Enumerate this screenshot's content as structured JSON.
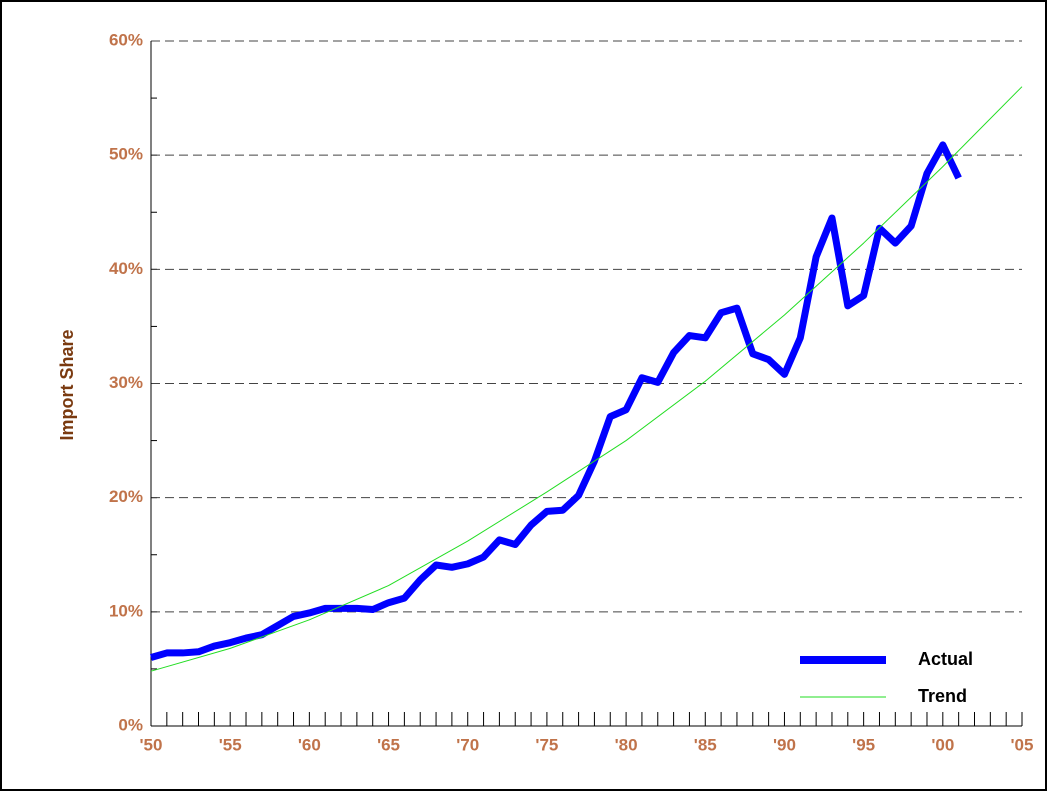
{
  "chart_data": {
    "type": "line",
    "ylabel": "Import Share",
    "series": [
      {
        "name": "Actual",
        "color": "#0000ff",
        "x": [
          1950,
          1951,
          1952,
          1953,
          1954,
          1955,
          1956,
          1957,
          1958,
          1959,
          1960,
          1961,
          1962,
          1963,
          1964,
          1965,
          1966,
          1967,
          1968,
          1969,
          1970,
          1971,
          1972,
          1973,
          1974,
          1975,
          1976,
          1977,
          1978,
          1979,
          1980,
          1981,
          1982,
          1983,
          1984,
          1985,
          1986,
          1987,
          1988,
          1989,
          1990,
          1991,
          1992,
          1993,
          1994,
          1995,
          1996,
          1997,
          1998,
          1999,
          2000,
          2001
        ],
        "values": [
          6.0,
          6.4,
          6.4,
          6.5,
          7.0,
          7.3,
          7.7,
          8.0,
          8.8,
          9.6,
          9.9,
          10.3,
          10.3,
          10.3,
          10.2,
          10.8,
          11.2,
          12.8,
          14.1,
          13.9,
          14.2,
          14.8,
          16.3,
          15.9,
          17.6,
          18.8,
          18.9,
          20.2,
          23.2,
          27.1,
          27.7,
          30.5,
          30.1,
          32.7,
          34.2,
          34.0,
          36.2,
          36.6,
          32.6,
          32.1,
          30.8,
          34.0,
          41.1,
          44.5,
          36.8,
          37.7,
          43.6,
          42.3,
          43.8,
          48.4,
          50.9,
          48.0
        ]
      },
      {
        "name": "Trend",
        "color": "#22dd22",
        "x": [
          1950,
          1955,
          1960,
          1965,
          1970,
          1975,
          1980,
          1985,
          1990,
          1995,
          2000,
          2005
        ],
        "values": [
          4.8,
          6.8,
          9.3,
          12.3,
          16.2,
          20.5,
          25.0,
          30.2,
          36.0,
          42.3,
          49.0,
          56.0
        ]
      }
    ],
    "xlim": [
      1950,
      2005
    ],
    "xticks": [
      {
        "value": 1950,
        "label": "'50"
      },
      {
        "value": 1955,
        "label": "'55"
      },
      {
        "value": 1960,
        "label": "'60"
      },
      {
        "value": 1965,
        "label": "'65"
      },
      {
        "value": 1970,
        "label": "'70"
      },
      {
        "value": 1975,
        "label": "'75"
      },
      {
        "value": 1980,
        "label": "'80"
      },
      {
        "value": 1985,
        "label": "'85"
      },
      {
        "value": 1990,
        "label": "'90"
      },
      {
        "value": 1995,
        "label": "'95"
      },
      {
        "value": 2000,
        "label": "'00"
      },
      {
        "value": 2005,
        "label": "'05"
      }
    ],
    "ylim": [
      0,
      60
    ],
    "yticks": [
      {
        "value": 0,
        "label": "0%"
      },
      {
        "value": 10,
        "label": "10%"
      },
      {
        "value": 20,
        "label": "20%"
      },
      {
        "value": 30,
        "label": "30%"
      },
      {
        "value": 40,
        "label": "40%"
      },
      {
        "value": 50,
        "label": "50%"
      },
      {
        "value": 60,
        "label": "60%"
      }
    ],
    "grid": true,
    "legend": "lower right"
  }
}
